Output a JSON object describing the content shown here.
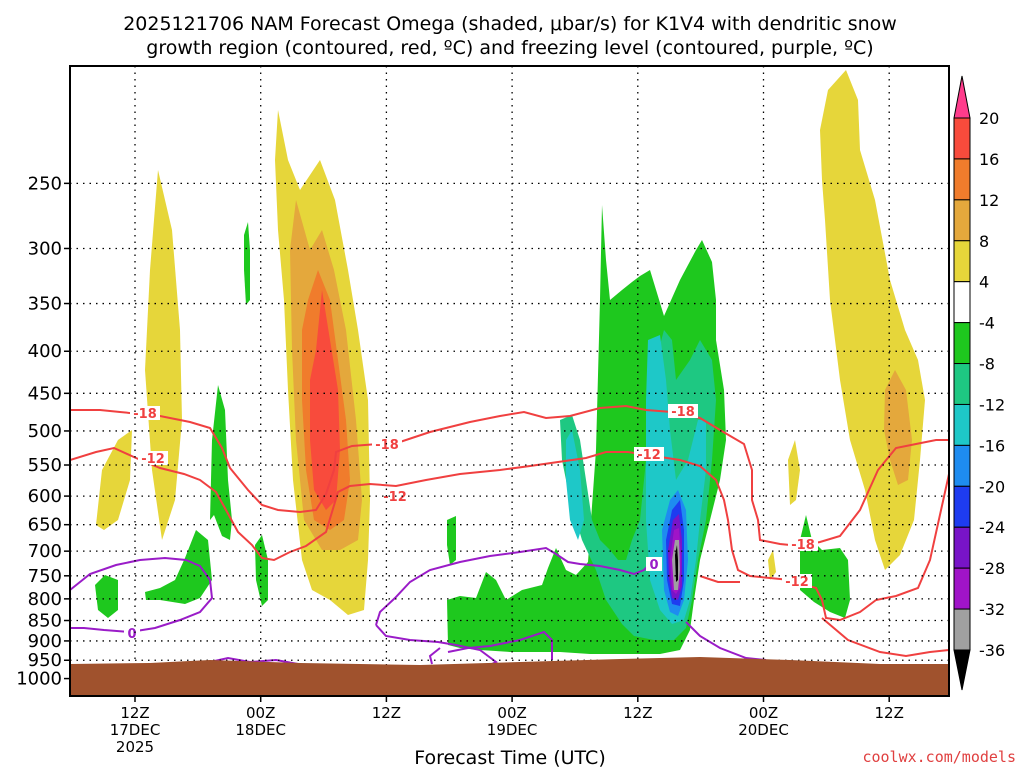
{
  "chart_data": {
    "type": "heatmap",
    "title_line1": "2025121706 NAM Forecast Omega (shaded, μbar/s) for K1V4 with dendritic snow",
    "title_line2": "growth region (contoured, red, ºC) and freezing level (contoured, purple, ºC)",
    "xlabel": "Forecast Time (UTC)",
    "ylabel": "",
    "y_axis": {
      "scale": "log-pressure",
      "unit": "hPa",
      "range": [
        1050,
        180
      ],
      "ticks": [
        250,
        300,
        350,
        400,
        450,
        500,
        550,
        600,
        650,
        700,
        750,
        800,
        850,
        900,
        950,
        1000
      ]
    },
    "x_axis": {
      "ticks": [
        {
          "line1": "12Z",
          "line2": "17DEC",
          "line3": "2025"
        },
        {
          "line1": "00Z",
          "line2": "18DEC",
          "line3": ""
        },
        {
          "line1": "12Z",
          "line2": "",
          "line3": ""
        },
        {
          "line1": "00Z",
          "line2": "19DEC",
          "line3": ""
        },
        {
          "line1": "12Z",
          "line2": "",
          "line3": ""
        },
        {
          "line1": "00Z",
          "line2": "20DEC",
          "line3": ""
        },
        {
          "line1": "12Z",
          "line2": "",
          "line3": ""
        }
      ]
    },
    "grid": "dotted",
    "colorbar": {
      "placement": "right",
      "labels": [
        "20",
        "16",
        "12",
        "8",
        "4",
        "-4",
        "-8",
        "-12",
        "-16",
        "-20",
        "-24",
        "-28",
        "-32",
        "-36"
      ],
      "colors": [
        "#ff3c8c",
        "#f84b3c",
        "#f07c2c",
        "#e4a83c",
        "#e6d63a",
        "#ffffff",
        "#1ec81e",
        "#1ec882",
        "#1ec8c8",
        "#1e8cf0",
        "#1e3cf0",
        "#7814c8",
        "#a014c8",
        "#a0a0a0",
        "#000000"
      ]
    },
    "contour_labels": {
      "dgz_upper": "-18",
      "dgz_lower": "-12",
      "freezing": "0"
    },
    "terrain_color": "#a0522d"
  },
  "footer": {
    "credit": "coolwx.com/models"
  }
}
